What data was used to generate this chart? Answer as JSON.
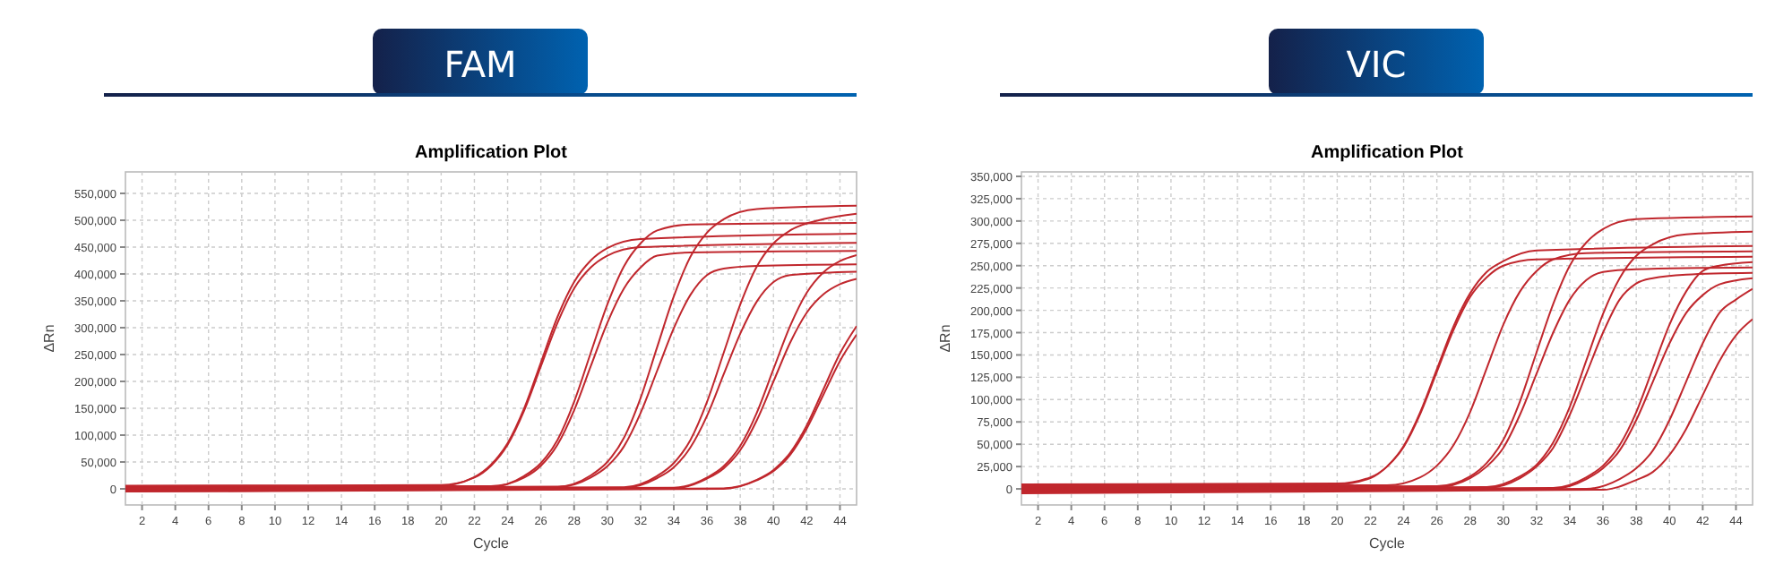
{
  "chart_data": [
    {
      "type": "line",
      "title": "FAM",
      "subtitle": "Amplification Plot",
      "xlabel": "Cycle",
      "ylabel": "ΔRn",
      "grid": true,
      "xlim": [
        1,
        45
      ],
      "xticks": [
        2,
        4,
        6,
        8,
        10,
        12,
        14,
        16,
        18,
        20,
        22,
        24,
        26,
        28,
        30,
        32,
        34,
        36,
        38,
        40,
        42,
        44
      ],
      "ylim": [
        -30000,
        590000
      ],
      "yticks": [
        0,
        {
          "value": 50000,
          "label": "50,000"
        },
        {
          "value": 100000,
          "label": "100,000"
        },
        {
          "value": 150000,
          "label": "150,000"
        },
        {
          "value": 200000,
          "label": "200,000"
        },
        {
          "value": 250000,
          "label": "250,000"
        },
        {
          "value": 300000,
          "label": "300,000"
        },
        {
          "value": 350000,
          "label": "350,000"
        },
        {
          "value": 400000,
          "label": "400,000"
        },
        {
          "value": 450000,
          "label": "450,000"
        },
        {
          "value": 500000,
          "label": "500,000"
        },
        {
          "value": 550000,
          "label": "550,000"
        }
      ],
      "series": [
        {
          "color": "#c0272d",
          "x": [
            1,
            20,
            22,
            23,
            24,
            25,
            26,
            27,
            28,
            29,
            30,
            32,
            45
          ],
          "values": [
            6000,
            7000,
            21000,
            43000,
            82000,
            146000,
            228000,
            309000,
            373000,
            412000,
            434000,
            450000,
            458000
          ]
        },
        {
          "color": "#c0272d",
          "x": [
            1,
            20,
            22,
            23,
            24,
            25,
            26,
            27,
            28,
            29,
            30,
            32,
            45
          ],
          "values": [
            5000,
            6000,
            22000,
            45000,
            85000,
            150000,
            235000,
            320000,
            385000,
            425000,
            448000,
            465000,
            475000
          ]
        },
        {
          "color": "#c0272d",
          "x": [
            1,
            23,
            25,
            26,
            27,
            28,
            29,
            30,
            31,
            32,
            33,
            35,
            45
          ],
          "values": [
            4000,
            5000,
            21000,
            43000,
            82000,
            146000,
            228000,
            309000,
            373000,
            412000,
            434000,
            440000,
            443000
          ]
        },
        {
          "color": "#c0272d",
          "x": [
            1,
            23,
            25,
            26,
            27,
            28,
            29,
            30,
            31,
            32,
            33,
            35,
            45
          ],
          "values": [
            3000,
            4000,
            24000,
            48000,
            91000,
            162000,
            253000,
            343000,
            414000,
            457000,
            481000,
            492000,
            495000
          ]
        },
        {
          "color": "#c0272d",
          "x": [
            1,
            27,
            29,
            30,
            31,
            32,
            33,
            34,
            35,
            36,
            37,
            39,
            45
          ],
          "values": [
            2000,
            4000,
            25000,
            50000,
            95000,
            169000,
            264000,
            358000,
            432000,
            477000,
            502000,
            521000,
            527000
          ]
        },
        {
          "color": "#c0272d",
          "x": [
            1,
            27,
            29,
            30,
            31,
            32,
            33,
            34,
            35,
            36,
            37,
            39,
            45
          ],
          "values": [
            1000,
            3000,
            21000,
            42000,
            79000,
            141000,
            220000,
            299000,
            361000,
            398000,
            410000,
            415000,
            418000
          ]
        },
        {
          "color": "#c0272d",
          "x": [
            1,
            31,
            33,
            34,
            35,
            36,
            37,
            38,
            39,
            40,
            41,
            43,
            45
          ],
          "values": [
            0,
            3000,
            24000,
            48000,
            91000,
            162000,
            253000,
            343000,
            414000,
            457000,
            481000,
            502000,
            512000
          ]
        },
        {
          "color": "#c0272d",
          "x": [
            1,
            31,
            33,
            34,
            35,
            36,
            37,
            38,
            39,
            40,
            41,
            43,
            45
          ],
          "values": [
            -1000,
            2000,
            20000,
            40000,
            77000,
            136000,
            213000,
            289000,
            349000,
            385000,
            398000,
            402000,
            404000
          ]
        },
        {
          "color": "#c0272d",
          "x": [
            1,
            34,
            36,
            37,
            38,
            39,
            40,
            41,
            42,
            43,
            44,
            45
          ],
          "values": [
            -2000,
            2000,
            21000,
            42000,
            80000,
            142000,
            223000,
            303000,
            365000,
            403000,
            424000,
            435000
          ]
        },
        {
          "color": "#c0272d",
          "x": [
            1,
            34,
            36,
            37,
            38,
            39,
            40,
            41,
            42,
            43,
            44,
            45
          ],
          "values": [
            -3000,
            1000,
            19000,
            38000,
            72000,
            128000,
            200000,
            272000,
            328000,
            362000,
            381000,
            391000
          ]
        },
        {
          "color": "#c0272d",
          "x": [
            1,
            37,
            39,
            40,
            41,
            42,
            43,
            44,
            45
          ],
          "values": [
            -4000,
            1000,
            17000,
            35000,
            67000,
            118000,
            185000,
            252000,
            303000
          ]
        },
        {
          "color": "#c0272d",
          "x": [
            1,
            37,
            39,
            40,
            41,
            42,
            43,
            44,
            45
          ],
          "values": [
            -5000,
            0,
            16000,
            33000,
            63000,
            112000,
            175000,
            238000,
            287000
          ]
        }
      ]
    },
    {
      "type": "line",
      "title": "VIC",
      "subtitle": "Amplification Plot",
      "xlabel": "Cycle",
      "ylabel": "ΔRn",
      "grid": true,
      "xlim": [
        1,
        45
      ],
      "xticks": [
        2,
        4,
        6,
        8,
        10,
        12,
        14,
        16,
        18,
        20,
        22,
        24,
        26,
        28,
        30,
        32,
        34,
        36,
        38,
        40,
        42,
        44
      ],
      "ylim": [
        -18000,
        355000
      ],
      "yticks": [
        0,
        {
          "value": 25000,
          "label": "25,000"
        },
        {
          "value": 50000,
          "label": "50,000"
        },
        {
          "value": 75000,
          "label": "75,000"
        },
        {
          "value": 100000,
          "label": "100,000"
        },
        {
          "value": 125000,
          "label": "125,000"
        },
        {
          "value": 150000,
          "label": "150,000"
        },
        {
          "value": 175000,
          "label": "175,000"
        },
        {
          "value": 200000,
          "label": "200,000"
        },
        {
          "value": 225000,
          "label": "225,000"
        },
        {
          "value": 250000,
          "label": "250,000"
        },
        {
          "value": 275000,
          "label": "275,000"
        },
        {
          "value": 300000,
          "label": "300,000"
        },
        {
          "value": 325000,
          "label": "325,000"
        },
        {
          "value": 350000,
          "label": "350,000"
        }
      ],
      "series": [
        {
          "color": "#c0272d",
          "x": [
            1,
            20,
            22,
            23,
            24,
            25,
            26,
            27,
            28,
            29,
            30,
            32,
            45
          ],
          "values": [
            5000,
            6000,
            13000,
            25000,
            48000,
            86000,
            134000,
            182000,
            219000,
            243000,
            255000,
            267000,
            272000
          ]
        },
        {
          "color": "#c0272d",
          "x": [
            1,
            20,
            22,
            23,
            24,
            25,
            26,
            27,
            28,
            29,
            30,
            32,
            45
          ],
          "values": [
            4000,
            5000,
            12000,
            25000,
            47000,
            84000,
            131000,
            178000,
            215000,
            237000,
            250000,
            257000,
            260000
          ]
        },
        {
          "color": "#c0272d",
          "x": [
            1,
            23,
            25,
            26,
            27,
            28,
            29,
            30,
            31,
            32,
            33,
            35,
            45
          ],
          "values": [
            3000,
            4000,
            13000,
            26000,
            49000,
            86000,
            135000,
            184000,
            221000,
            244000,
            257000,
            264000,
            266000
          ]
        },
        {
          "color": "#c0272d",
          "x": [
            1,
            26,
            28,
            29,
            30,
            31,
            32,
            33,
            34,
            35,
            36,
            38,
            45
          ],
          "values": [
            2000,
            3000,
            14000,
            29000,
            55000,
            98000,
            153000,
            207000,
            250000,
            276000,
            291000,
            302000,
            305000
          ]
        },
        {
          "color": "#c0272d",
          "x": [
            1,
            26,
            28,
            29,
            30,
            31,
            32,
            33,
            34,
            35,
            36,
            38,
            45
          ],
          "values": [
            1000,
            2000,
            12000,
            25000,
            46000,
            83000,
            129000,
            175000,
            212000,
            234000,
            243000,
            246000,
            248000
          ]
        },
        {
          "color": "#c0272d",
          "x": [
            1,
            29,
            31,
            32,
            33,
            34,
            35,
            36,
            37,
            38,
            39,
            41,
            45
          ],
          "values": [
            0,
            2000,
            14000,
            27000,
            52000,
            92000,
            144000,
            196000,
            236000,
            261000,
            274000,
            285000,
            288000
          ]
        },
        {
          "color": "#c0272d",
          "x": [
            1,
            29,
            31,
            32,
            33,
            34,
            35,
            36,
            37,
            38,
            39,
            41,
            45
          ],
          "values": [
            -1000,
            1000,
            12000,
            25000,
            46000,
            83000,
            129000,
            175000,
            212000,
            230000,
            236000,
            240000,
            242000
          ]
        },
        {
          "color": "#c0272d",
          "x": [
            1,
            33,
            35,
            36,
            37,
            38,
            39,
            40,
            41,
            42,
            43,
            45
          ],
          "values": [
            -2000,
            1000,
            13000,
            26000,
            49000,
            86000,
            135000,
            184000,
            221000,
            244000,
            250000,
            254000
          ]
        },
        {
          "color": "#c0272d",
          "x": [
            1,
            33,
            35,
            36,
            37,
            38,
            39,
            40,
            41,
            42,
            43,
            45
          ],
          "values": [
            -3000,
            0,
            11000,
            23000,
            43000,
            77000,
            120000,
            163000,
            197000,
            217000,
            229000,
            236000
          ]
        },
        {
          "color": "#c0272d",
          "x": [
            1,
            35,
            37,
            38,
            39,
            40,
            41,
            42,
            43,
            44,
            45
          ],
          "values": [
            -4000,
            0,
            11000,
            23000,
            43000,
            77000,
            120000,
            163000,
            197000,
            212000,
            224000
          ]
        },
        {
          "color": "#c0272d",
          "x": [
            1,
            36,
            38,
            39,
            40,
            41,
            42,
            43,
            44,
            45
          ],
          "values": [
            -5000,
            -1000,
            10000,
            19000,
            38000,
            67000,
            105000,
            143000,
            172000,
            190000
          ]
        }
      ]
    }
  ]
}
